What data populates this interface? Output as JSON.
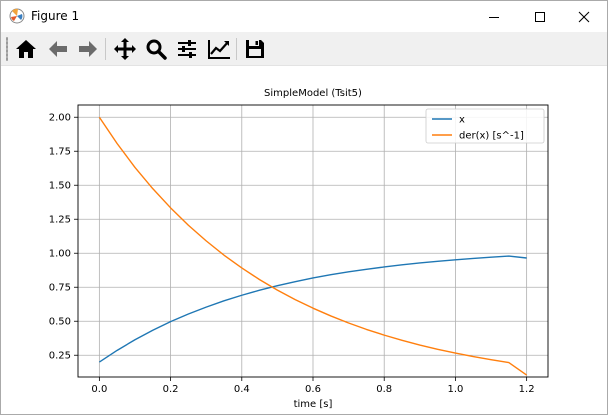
{
  "window": {
    "title": "Figure 1",
    "controls": {
      "minimize": "minimize-icon",
      "maximize": "maximize-icon",
      "close": "close-icon"
    }
  },
  "toolbar": {
    "buttons": [
      {
        "name": "home-button",
        "icon": "home-icon"
      },
      {
        "name": "back-button",
        "icon": "arrow-left-icon"
      },
      {
        "name": "forward-button",
        "icon": "arrow-right-icon"
      },
      {
        "name": "pan-button",
        "icon": "move-icon"
      },
      {
        "name": "zoom-button",
        "icon": "magnifier-icon"
      },
      {
        "name": "configure-subplots-button",
        "icon": "sliders-icon"
      },
      {
        "name": "edit-axis-button",
        "icon": "line-chart-icon"
      },
      {
        "name": "save-button",
        "icon": "floppy-disk-icon"
      }
    ]
  },
  "chart_data": {
    "type": "line",
    "title": "SimpleModel (Tsit5)",
    "xlabel": "time [s]",
    "ylabel": "",
    "xlim": [
      -0.06,
      1.26
    ],
    "ylim": [
      0.09,
      2.09
    ],
    "xticks": [
      "0.0",
      "0.2",
      "0.4",
      "0.6",
      "0.8",
      "1.0",
      "1.2"
    ],
    "xtick_values": [
      0.0,
      0.2,
      0.4,
      0.6,
      0.8,
      1.0,
      1.2
    ],
    "yticks": [
      "0.25",
      "0.50",
      "0.75",
      "1.00",
      "1.25",
      "1.50",
      "1.75",
      "2.00"
    ],
    "ytick_values": [
      0.25,
      0.5,
      0.75,
      1.0,
      1.25,
      1.5,
      1.75,
      2.0
    ],
    "grid": true,
    "legend_position": "top-right",
    "x": [
      0.0,
      0.05,
      0.1,
      0.15,
      0.2,
      0.25,
      0.3,
      0.35,
      0.4,
      0.45,
      0.5,
      0.55,
      0.6,
      0.65,
      0.7,
      0.75,
      0.8,
      0.85,
      0.9,
      0.95,
      1.0,
      1.05,
      1.1,
      1.15,
      1.2
    ],
    "series": [
      {
        "name": "x",
        "color": "#1f77b4",
        "values": [
          0.2,
          0.286,
          0.364,
          0.434,
          0.497,
          0.553,
          0.604,
          0.65,
          0.691,
          0.728,
          0.761,
          0.791,
          0.818,
          0.842,
          0.863,
          0.882,
          0.899,
          0.915,
          0.929,
          0.941,
          0.952,
          0.962,
          0.971,
          0.979,
          0.965
        ]
      },
      {
        "name": "der(x) [s^-1]",
        "color": "#ff7f0e",
        "values": [
          2.0,
          1.806,
          1.631,
          1.475,
          1.334,
          1.206,
          1.091,
          0.986,
          0.892,
          0.806,
          0.729,
          0.659,
          0.596,
          0.539,
          0.487,
          0.44,
          0.398,
          0.36,
          0.325,
          0.294,
          0.266,
          0.24,
          0.217,
          0.196,
          0.104
        ]
      }
    ]
  }
}
